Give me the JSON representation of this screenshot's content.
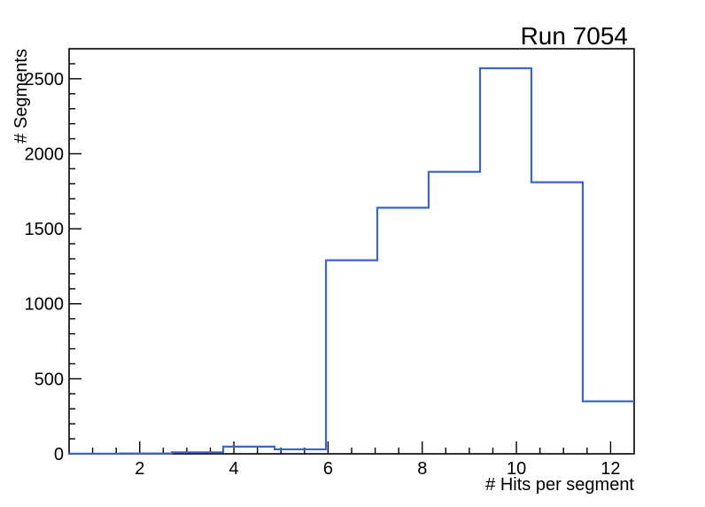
{
  "page": {
    "background_color": "#ffffff"
  },
  "chart_data": {
    "type": "bar",
    "style": "step-histogram",
    "title": "Run 7054",
    "xlabel": "# Hits per segment",
    "ylabel": "# Segments",
    "xlim": [
      0.5,
      12.5
    ],
    "ylim": [
      0,
      2700
    ],
    "bin_edges": [
      0.5,
      1.591,
      2.682,
      3.773,
      4.864,
      5.955,
      7.045,
      8.136,
      9.227,
      10.318,
      11.409,
      12.5
    ],
    "values": [
      1,
      2,
      10,
      48,
      30,
      1290,
      1640,
      1880,
      2570,
      1810,
      350
    ],
    "x_major_ticks": [
      2,
      4,
      6,
      8,
      10,
      12
    ],
    "x_tick_labels": [
      "2",
      "4",
      "6",
      "8",
      "10",
      "12"
    ],
    "x_minor_tick_step": 0.5,
    "y_major_ticks": [
      0,
      500,
      1000,
      1500,
      2000,
      2500
    ],
    "y_tick_labels": [
      "0",
      "500",
      "1000",
      "1500",
      "2000",
      "2500"
    ],
    "y_minor_tick_step": 100,
    "line_color": "#3a67c6",
    "axis_color": "#000000",
    "grid": "off",
    "legend": "none"
  }
}
